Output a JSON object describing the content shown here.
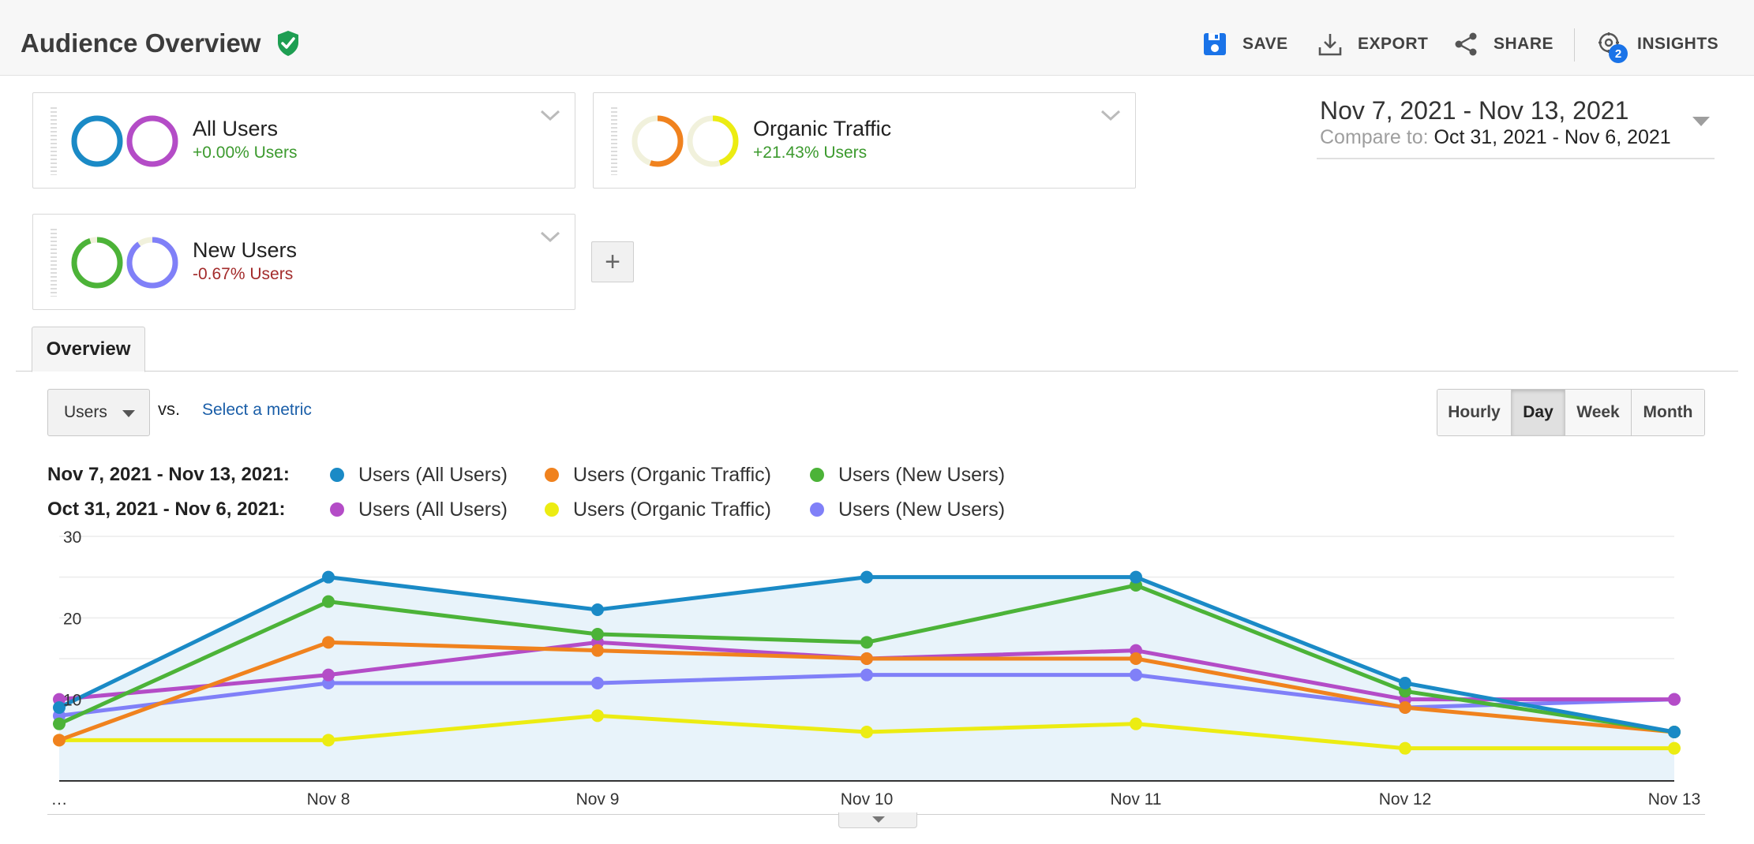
{
  "header": {
    "title": "Audience Overview",
    "save_label": "SAVE",
    "export_label": "EXPORT",
    "share_label": "SHARE",
    "insights_label": "INSIGHTS",
    "insights_badge": "2"
  },
  "segments": [
    {
      "name": "All Users",
      "delta": "+0.00% Users",
      "trend": "positive",
      "ring_colors": [
        "#1a8ac6",
        "#b44cc7"
      ],
      "ring_fill": [
        1.0,
        1.0
      ]
    },
    {
      "name": "Organic Traffic",
      "delta": "+21.43% Users",
      "trend": "positive",
      "ring_colors": [
        "#f0821e",
        "#ecec12"
      ],
      "ring_fill": [
        0.55,
        0.45
      ]
    },
    {
      "name": "New Users",
      "delta": "-0.67% Users",
      "trend": "negative",
      "ring_colors": [
        "#4cb338",
        "#8080f8"
      ],
      "ring_fill": [
        0.95,
        0.9
      ]
    }
  ],
  "add_segment_label": "+",
  "date_range": {
    "main": "Nov 7, 2021 - Nov 13, 2021",
    "compare_label": "Compare to:",
    "compare_value": "Oct 31, 2021 - Nov 6, 2021"
  },
  "tabs": {
    "overview": "Overview"
  },
  "metric": {
    "selected": "Users",
    "vs": "vs.",
    "select_metric": "Select a metric"
  },
  "granularity": {
    "options": [
      "Hourly",
      "Day",
      "Week",
      "Month"
    ],
    "selected": "Day"
  },
  "legend": {
    "current_period": "Nov 7, 2021 - Nov 13, 2021:",
    "previous_period": "Oct 31, 2021 - Nov 6, 2021:",
    "current_items": [
      {
        "label": "Users (All Users)",
        "color": "#1a8ac6"
      },
      {
        "label": "Users (Organic Traffic)",
        "color": "#f0821e"
      },
      {
        "label": "Users (New Users)",
        "color": "#4cb338"
      }
    ],
    "previous_items": [
      {
        "label": "Users (All Users)",
        "color": "#b44cc7"
      },
      {
        "label": "Users (Organic Traffic)",
        "color": "#ecec12"
      },
      {
        "label": "Users (New Users)",
        "color": "#8080f8"
      }
    ]
  },
  "chart_data": {
    "type": "line",
    "categories": [
      "…",
      "Nov 8",
      "Nov 9",
      "Nov 10",
      "Nov 11",
      "Nov 12",
      "Nov 13"
    ],
    "y_ticks": [
      "30",
      "20",
      "10"
    ],
    "ylim": [
      0,
      30
    ],
    "grid": true,
    "series": [
      {
        "name": "Users (All Users)",
        "period": "current",
        "color": "#1a8ac6",
        "values": [
          9,
          25,
          21,
          25,
          25,
          12,
          6
        ]
      },
      {
        "name": "Users (Organic Traffic)",
        "period": "current",
        "color": "#f0821e",
        "values": [
          5,
          17,
          16,
          15,
          15,
          9,
          6
        ]
      },
      {
        "name": "Users (New Users)",
        "period": "current",
        "color": "#4cb338",
        "values": [
          7,
          22,
          18,
          17,
          24,
          11,
          6
        ]
      },
      {
        "name": "Users (All Users)",
        "period": "previous",
        "color": "#b44cc7",
        "values": [
          10,
          13,
          17,
          15,
          16,
          10,
          10
        ]
      },
      {
        "name": "Users (Organic Traffic)",
        "period": "previous",
        "color": "#ecec12",
        "values": [
          5,
          5,
          8,
          6,
          7,
          4,
          4
        ]
      },
      {
        "name": "Users (New Users)",
        "period": "previous",
        "color": "#8080f8",
        "values": [
          8,
          12,
          12,
          13,
          13,
          9,
          10
        ]
      }
    ]
  }
}
